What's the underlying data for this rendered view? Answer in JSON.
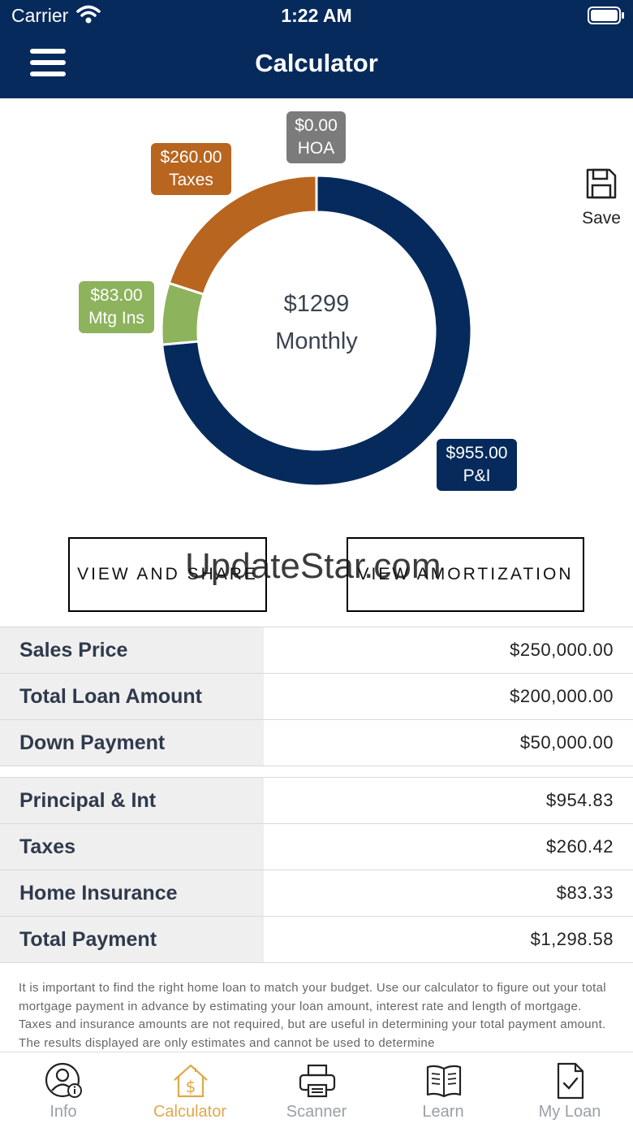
{
  "status_bar": {
    "carrier": "Carrier",
    "time": "1:22 AM"
  },
  "header": {
    "title": "Calculator"
  },
  "chart_data": {
    "type": "pie",
    "center_amount": "$1299",
    "center_label": "Monthly",
    "slices": [
      {
        "name": "P&I",
        "value": 955.0,
        "amount_label": "$955.00",
        "color": "#062a5c"
      },
      {
        "name": "Mtg Ins",
        "value": 83.0,
        "amount_label": "$83.00",
        "color": "#8db35c"
      },
      {
        "name": "Taxes",
        "value": 260.0,
        "amount_label": "$260.00",
        "color": "#b8651f"
      },
      {
        "name": "HOA",
        "value": 0.0,
        "amount_label": "$0.00",
        "color": "#7b7b7b"
      }
    ]
  },
  "save": {
    "label": "Save"
  },
  "buttons": {
    "view_share": "VIEW AND SHARE",
    "view_amortization": "VIEW AMORTIZATION"
  },
  "watermark": "UpdateStar.com",
  "loan_rows": [
    {
      "label": "Sales Price",
      "value": "$250,000.00"
    },
    {
      "label": "Total Loan Amount",
      "value": "$200,000.00"
    },
    {
      "label": "Down Payment",
      "value": "$50,000.00"
    }
  ],
  "payment_rows": [
    {
      "label": "Principal & Int",
      "value": "$954.83"
    },
    {
      "label": "Taxes",
      "value": "$260.42"
    },
    {
      "label": "Home Insurance",
      "value": "$83.33"
    },
    {
      "label": "Total Payment",
      "value": "$1,298.58"
    }
  ],
  "disclaimer": "It is important to find the right home loan to match your budget. Use our calculator to figure out your total mortgage payment in advance by estimating your loan amount, interest rate and length of mortgage. Taxes and insurance amounts are not required, but are useful in determining your total payment amount. The results displayed are only estimates and cannot be used to determine",
  "tabs": [
    {
      "label": "Info",
      "icon": "user-info-icon"
    },
    {
      "label": "Calculator",
      "icon": "house-dollar-icon",
      "active": true
    },
    {
      "label": "Scanner",
      "icon": "printer-icon"
    },
    {
      "label": "Learn",
      "icon": "open-book-icon"
    },
    {
      "label": "My Loan",
      "icon": "document-check-icon"
    }
  ],
  "colors": {
    "header_bg": "#062a5c",
    "tab_active": "#e0a94a",
    "tab_inactive": "#9aa0a6"
  }
}
